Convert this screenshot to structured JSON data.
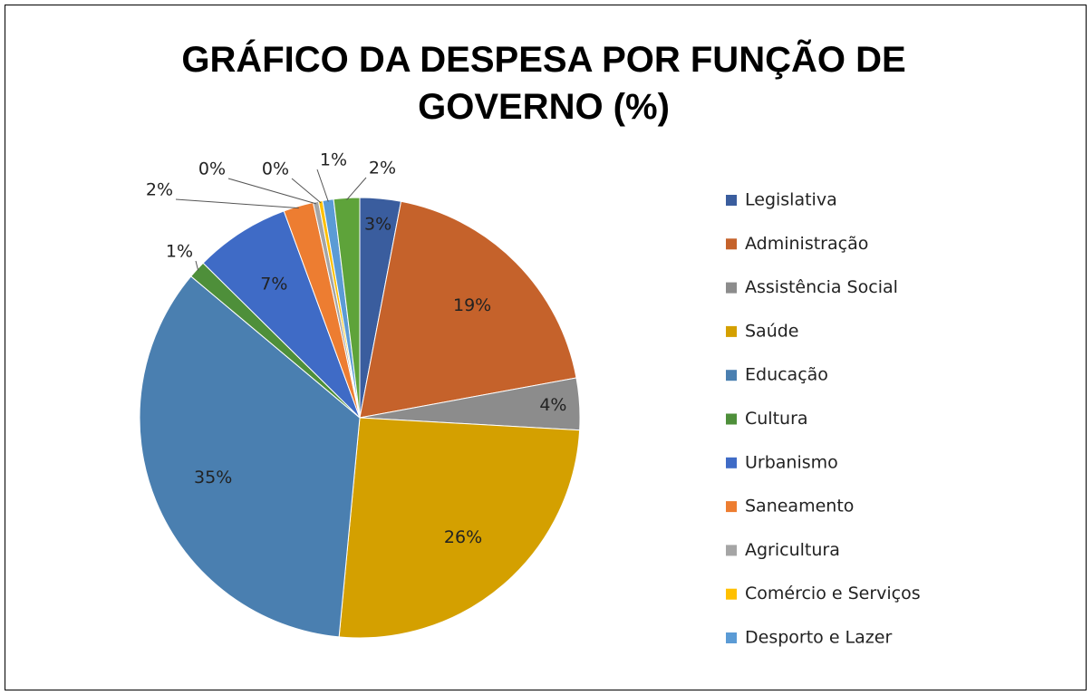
{
  "chart_data": {
    "type": "pie",
    "title": "GRÁFICO DA DESPESA POR FUNÇÃO DE GOVERNO (%)",
    "categories": [
      "Legislativa",
      "Administração",
      "Assistência Social",
      "Saúde",
      "Educação",
      "Cultura",
      "Urbanismo",
      "Saneamento",
      "Agricultura",
      "Comércio e Serviços",
      "Desporto e Lazer",
      null
    ],
    "values": [
      3.0,
      19.1,
      3.8,
      25.6,
      34.6,
      1.3,
      7.0,
      2.2,
      0.4,
      0.3,
      0.8,
      1.9
    ],
    "value_labels": [
      "3%",
      "19%",
      "4%",
      "26%",
      "35%",
      "1%",
      "7%",
      "2%",
      "0%",
      "0%",
      "1%",
      "2%"
    ],
    "colors": [
      "#3a5d9e",
      "#c5622b",
      "#8c8c8c",
      "#d4a000",
      "#4a7fb0",
      "#4e8f3a",
      "#3f6bc6",
      "#ed7d31",
      "#a5a5a5",
      "#ffc000",
      "#5b9bd5",
      "#5ea33a"
    ],
    "legend": "right"
  }
}
